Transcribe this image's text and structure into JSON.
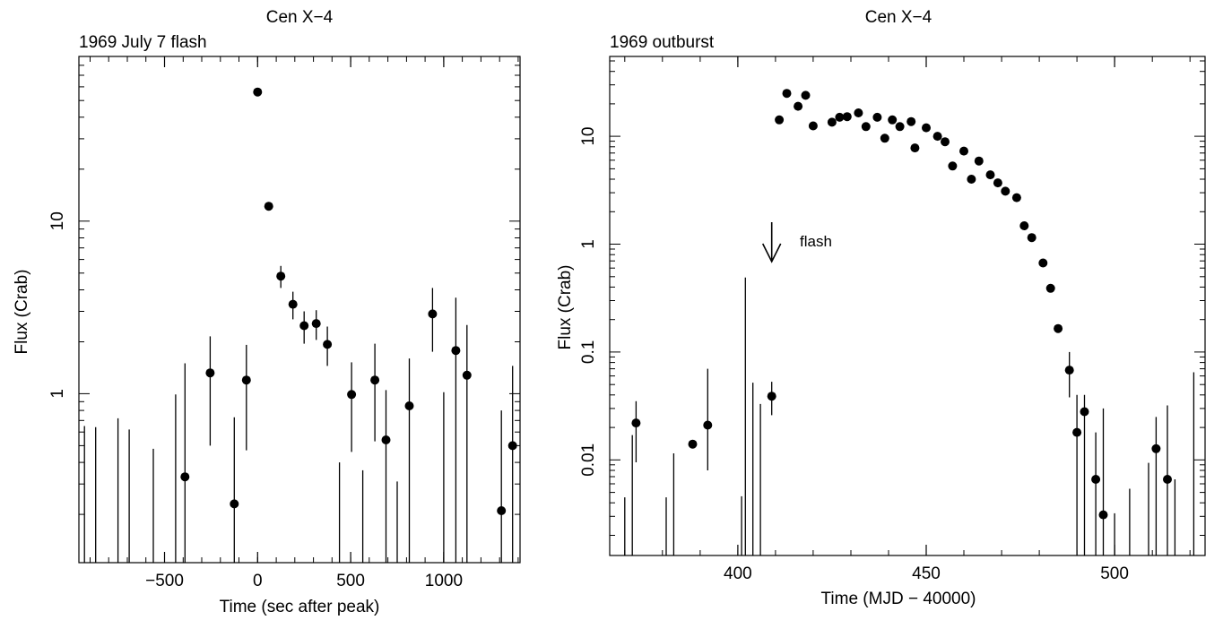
{
  "chart_data": [
    {
      "type": "scatter",
      "title": "Cen X−4",
      "subtitle": "1969 July 7 flash",
      "xlabel": "Time (sec after peak)",
      "ylabel": "Flux (Crab)",
      "xlim": [
        -960,
        1410
      ],
      "ylim": [
        0.105,
        90
      ],
      "yscale": "log",
      "grid": false,
      "x_ticks": [
        -500,
        0,
        500,
        1000
      ],
      "x_tick_labels": [
        "−500",
        "0",
        "500",
        "1000"
      ],
      "x_minor_step": 100,
      "y_ticks": [
        1,
        10
      ],
      "y_tick_labels": [
        "1",
        "10"
      ],
      "points": [
        {
          "x": -390,
          "y": 0.33,
          "lo": 0.105,
          "hi": 1.5
        },
        {
          "x": -255,
          "y": 1.32,
          "lo": 0.5,
          "hi": 2.15
        },
        {
          "x": -125,
          "y": 0.23,
          "lo": 0.105,
          "hi": 0.73
        },
        {
          "x": -60,
          "y": 1.2,
          "lo": 0.47,
          "hi": 1.92
        },
        {
          "x": 0,
          "y": 56,
          "lo": 56,
          "hi": 56
        },
        {
          "x": 60,
          "y": 12.2,
          "lo": 11.6,
          "hi": 12.8
        },
        {
          "x": 125,
          "y": 4.8,
          "lo": 4.1,
          "hi": 5.5
        },
        {
          "x": 190,
          "y": 3.3,
          "lo": 2.7,
          "hi": 3.9
        },
        {
          "x": 250,
          "y": 2.48,
          "lo": 1.95,
          "hi": 3.0
        },
        {
          "x": 315,
          "y": 2.55,
          "lo": 2.05,
          "hi": 3.05
        },
        {
          "x": 375,
          "y": 1.93,
          "lo": 1.45,
          "hi": 2.45
        },
        {
          "x": 505,
          "y": 0.99,
          "lo": 0.46,
          "hi": 1.52
        },
        {
          "x": 630,
          "y": 1.2,
          "lo": 0.53,
          "hi": 1.95
        },
        {
          "x": 690,
          "y": 0.54,
          "lo": 0.105,
          "hi": 1.05
        },
        {
          "x": 815,
          "y": 0.85,
          "lo": 0.105,
          "hi": 1.6
        },
        {
          "x": 940,
          "y": 2.9,
          "lo": 1.75,
          "hi": 4.1
        },
        {
          "x": 1065,
          "y": 1.78,
          "lo": 0.105,
          "hi": 3.6
        },
        {
          "x": 1125,
          "y": 1.28,
          "lo": 0.105,
          "hi": 2.5
        },
        {
          "x": 1310,
          "y": 0.21,
          "lo": 0.105,
          "hi": 0.8
        },
        {
          "x": 1370,
          "y": 0.5,
          "lo": 0.105,
          "hi": 1.45
        }
      ],
      "upper_limits": [
        {
          "x": -930,
          "hi": 0.65
        },
        {
          "x": -870,
          "hi": 0.64
        },
        {
          "x": -750,
          "hi": 0.72
        },
        {
          "x": -690,
          "hi": 0.62
        },
        {
          "x": -560,
          "hi": 0.48
        },
        {
          "x": -440,
          "hi": 0.99
        },
        {
          "x": 440,
          "hi": 0.4
        },
        {
          "x": 565,
          "hi": 0.36
        },
        {
          "x": 750,
          "hi": 0.31
        },
        {
          "x": 1000,
          "hi": 1.02
        }
      ]
    },
    {
      "type": "scatter",
      "title": "Cen X−4",
      "subtitle": "1969 outburst",
      "xlabel": "Time (MJD − 40000)",
      "ylabel": "Flux (Crab)",
      "xlim": [
        366,
        524
      ],
      "ylim": [
        0.0013,
        55
      ],
      "yscale": "log",
      "grid": false,
      "x_ticks": [
        400,
        450,
        500
      ],
      "x_tick_labels": [
        "400",
        "450",
        "500"
      ],
      "x_minor_step": 10,
      "y_ticks": [
        0.01,
        0.1,
        1,
        10
      ],
      "y_tick_labels": [
        "0.01",
        "0.1",
        "1",
        "10"
      ],
      "annotation": {
        "text": "flash",
        "x": 409,
        "y": 1.6
      },
      "points": [
        {
          "x": 373,
          "y": 0.022,
          "lo": 0.0095,
          "hi": 0.035
        },
        {
          "x": 388,
          "y": 0.014,
          "lo": 0.014,
          "hi": 0.014
        },
        {
          "x": 392,
          "y": 0.021,
          "lo": 0.008,
          "hi": 0.07
        },
        {
          "x": 409,
          "y": 0.039,
          "lo": 0.026,
          "hi": 0.053
        },
        {
          "x": 411,
          "y": 14.2
        },
        {
          "x": 413,
          "y": 25.0
        },
        {
          "x": 416,
          "y": 19.0
        },
        {
          "x": 418,
          "y": 24.0
        },
        {
          "x": 420,
          "y": 12.5
        },
        {
          "x": 425,
          "y": 13.5
        },
        {
          "x": 427,
          "y": 15.0
        },
        {
          "x": 429,
          "y": 15.2
        },
        {
          "x": 432,
          "y": 16.5
        },
        {
          "x": 434,
          "y": 12.3
        },
        {
          "x": 437,
          "y": 15.0
        },
        {
          "x": 439,
          "y": 9.6
        },
        {
          "x": 441,
          "y": 14.2
        },
        {
          "x": 443,
          "y": 12.3
        },
        {
          "x": 446,
          "y": 13.7
        },
        {
          "x": 447,
          "y": 7.8
        },
        {
          "x": 450,
          "y": 12.0
        },
        {
          "x": 453,
          "y": 10.0
        },
        {
          "x": 455,
          "y": 8.9
        },
        {
          "x": 457,
          "y": 5.3
        },
        {
          "x": 460,
          "y": 7.3
        },
        {
          "x": 462,
          "y": 4.0
        },
        {
          "x": 464,
          "y": 5.9
        },
        {
          "x": 467,
          "y": 4.4
        },
        {
          "x": 469,
          "y": 3.7
        },
        {
          "x": 471,
          "y": 3.1
        },
        {
          "x": 474,
          "y": 2.7
        },
        {
          "x": 476,
          "y": 1.48
        },
        {
          "x": 478,
          "y": 1.15
        },
        {
          "x": 481,
          "y": 0.67
        },
        {
          "x": 483,
          "y": 0.39
        },
        {
          "x": 485,
          "y": 0.165
        },
        {
          "x": 488,
          "y": 0.068,
          "lo": 0.038,
          "hi": 0.1
        },
        {
          "x": 490,
          "y": 0.018,
          "lo": 0.0013,
          "hi": 0.04
        },
        {
          "x": 492,
          "y": 0.028,
          "lo": 0.0013,
          "hi": 0.04
        },
        {
          "x": 495,
          "y": 0.0066,
          "lo": 0.0013,
          "hi": 0.018
        },
        {
          "x": 497,
          "y": 0.0031,
          "lo": 0.0013,
          "hi": 0.03
        },
        {
          "x": 511,
          "y": 0.0127,
          "lo": 0.0013,
          "hi": 0.025
        },
        {
          "x": 514,
          "y": 0.0066,
          "lo": 0.0013,
          "hi": 0.032
        }
      ],
      "upper_limits": [
        {
          "x": 370,
          "hi": 0.0045
        },
        {
          "x": 372,
          "hi": 0.017
        },
        {
          "x": 381,
          "hi": 0.0045
        },
        {
          "x": 383,
          "hi": 0.0115
        },
        {
          "x": 401,
          "hi": 0.0046
        },
        {
          "x": 402,
          "hi": 0.49
        },
        {
          "x": 404,
          "hi": 0.052
        },
        {
          "x": 406,
          "hi": 0.033
        },
        {
          "x": 500,
          "hi": 0.0032
        },
        {
          "x": 504,
          "hi": 0.0054
        },
        {
          "x": 509,
          "hi": 0.0094
        },
        {
          "x": 516,
          "hi": 0.0066
        },
        {
          "x": 521,
          "hi": 0.065
        }
      ]
    }
  ]
}
